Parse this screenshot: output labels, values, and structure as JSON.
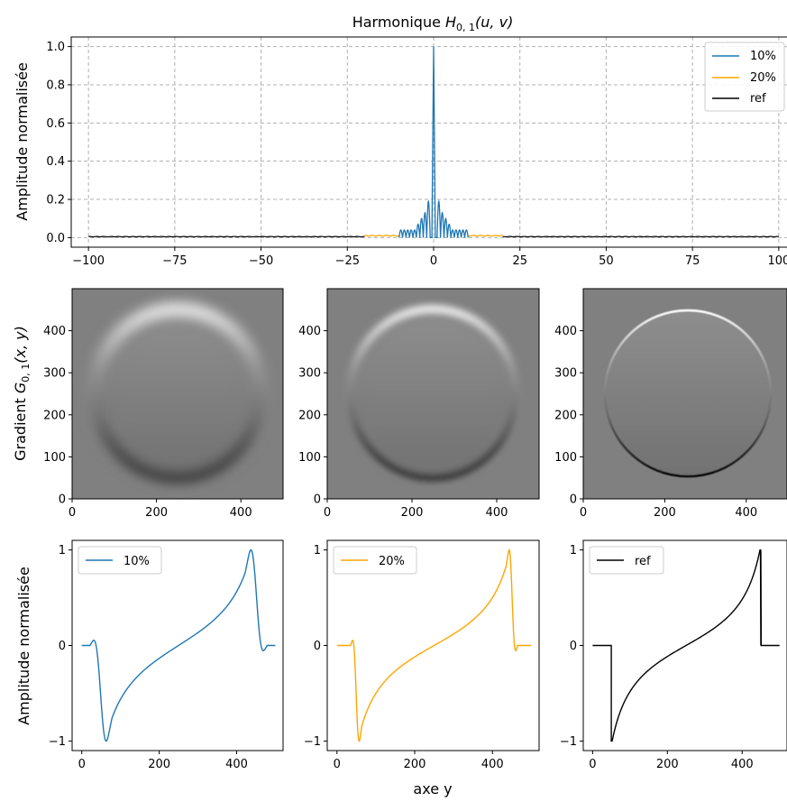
{
  "figure": {
    "supylabel_mid": "Gradient",
    "supxlabel": "axe y"
  },
  "chart_data": [
    {
      "id": "top",
      "type": "line",
      "title_prefix": "Harmonique",
      "title_math": "H",
      "title_sub": "0, 1",
      "title_args": "(u, v)",
      "ylabel": "Amplitude normalisée",
      "xlim": [
        -105,
        105
      ],
      "ylim": [
        -0.05,
        1.05
      ],
      "xticks": [
        -100,
        -75,
        -50,
        -25,
        0,
        25,
        50,
        75,
        100
      ],
      "xtick_labels": [
        "−100",
        "−75",
        "−50",
        "−25",
        "0",
        "25",
        "50",
        "75",
        "100"
      ],
      "yticks": [
        0.0,
        0.2,
        0.4,
        0.6,
        0.8,
        1.0
      ],
      "ytick_labels": [
        "0.0",
        "0.2",
        "0.4",
        "0.6",
        "0.8",
        "1.0"
      ],
      "grid": true,
      "legend": {
        "placement": "top-right",
        "entries": [
          "10%",
          "20%",
          "ref"
        ]
      },
      "series": [
        {
          "name": "ref",
          "color": "#000000",
          "x_range": [
            -100,
            100
          ],
          "ripple_amp": 0.006
        },
        {
          "name": "20%",
          "color": "#ffa500",
          "x_range": [
            -20,
            20
          ],
          "ripple_amp": 0.012
        },
        {
          "name": "10%",
          "color": "#1f77b4",
          "x_range": [
            -10,
            10
          ],
          "peak": 1.0,
          "sidelobe_peaks": [
            0.2,
            0.19,
            0.13,
            0.1,
            0.07,
            0.04
          ]
        }
      ]
    },
    {
      "id": "img1",
      "type": "heatmap",
      "variant": "blurred-strong",
      "ylabel_math": "G",
      "ylabel_sub": "0, 1",
      "ylabel_args": "(x, y)",
      "xlim": [
        0,
        500
      ],
      "ylim": [
        0,
        500
      ],
      "xticks": [
        0,
        200,
        400
      ],
      "yticks": [
        0,
        100,
        200,
        300,
        400
      ],
      "circle": {
        "cx": 250,
        "cy": 250,
        "r": 200
      },
      "colormap": "gray"
    },
    {
      "id": "img2",
      "type": "heatmap",
      "variant": "blurred-medium",
      "xlim": [
        0,
        500
      ],
      "ylim": [
        0,
        500
      ],
      "xticks": [
        0,
        200,
        400
      ],
      "yticks": [
        0,
        100,
        200,
        300,
        400
      ],
      "circle": {
        "cx": 250,
        "cy": 250,
        "r": 200
      },
      "colormap": "gray"
    },
    {
      "id": "img3",
      "type": "heatmap",
      "variant": "sharp",
      "xlim": [
        0,
        500
      ],
      "ylim": [
        0,
        500
      ],
      "xticks": [
        0,
        200,
        400
      ],
      "yticks": [
        0,
        100,
        200,
        300,
        400
      ],
      "circle": {
        "cx": 250,
        "cy": 250,
        "r": 200
      },
      "colormap": "gray"
    },
    {
      "id": "prof1",
      "type": "line",
      "ylabel": "Amplitude normalisée",
      "xlim": [
        -25,
        520
      ],
      "ylim": [
        -1.1,
        1.1
      ],
      "xticks": [
        0,
        200,
        400
      ],
      "yticks": [
        -1,
        0,
        1
      ],
      "ytick_labels": [
        "−1",
        "0",
        "1"
      ],
      "legend": {
        "placement": "top-left",
        "entries": [
          "10%"
        ]
      },
      "series": [
        {
          "name": "10%",
          "color": "#1f77b4",
          "edges": [
            50,
            450
          ],
          "ringing": 0.18,
          "smooth": 14
        }
      ]
    },
    {
      "id": "prof2",
      "type": "line",
      "xlim": [
        -25,
        520
      ],
      "ylim": [
        -1.1,
        1.1
      ],
      "xticks": [
        0,
        200,
        400
      ],
      "yticks": [
        -1,
        0,
        1
      ],
      "ytick_labels": [
        "−1",
        "0",
        "1"
      ],
      "legend": {
        "placement": "top-left",
        "entries": [
          "20%"
        ]
      },
      "series": [
        {
          "name": "20%",
          "color": "#ffa500",
          "edges": [
            50,
            450
          ],
          "ringing": 0.1,
          "smooth": 7
        }
      ]
    },
    {
      "id": "prof3",
      "type": "line",
      "xlim": [
        -25,
        520
      ],
      "ylim": [
        -1.1,
        1.1
      ],
      "xticks": [
        0,
        200,
        400
      ],
      "yticks": [
        -1,
        0,
        1
      ],
      "ytick_labels": [
        "−1",
        "0",
        "1"
      ],
      "legend": {
        "placement": "top-left",
        "entries": [
          "ref"
        ]
      },
      "series": [
        {
          "name": "ref",
          "color": "#000000",
          "edges": [
            50,
            450
          ],
          "ringing": 0,
          "smooth": 0
        }
      ]
    }
  ]
}
